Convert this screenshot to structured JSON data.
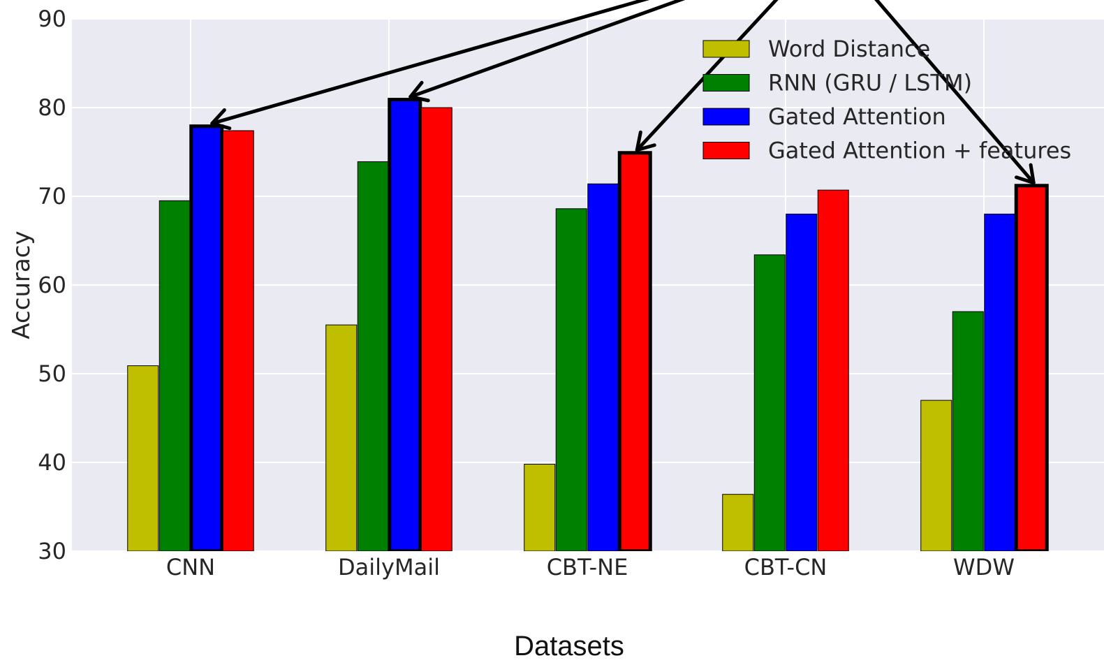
{
  "chart_data": {
    "type": "bar",
    "categories": [
      "CNN",
      "DailyMail",
      "CBT-NE",
      "CBT-CN",
      "WDW"
    ],
    "series": [
      {
        "name": "Word Distance",
        "color": "#bfbf00",
        "values": [
          50.9,
          55.5,
          39.8,
          36.4,
          47.0
        ]
      },
      {
        "name": "RNN (GRU / LSTM)",
        "color": "#008000",
        "values": [
          69.5,
          73.9,
          68.6,
          63.4,
          57.0
        ]
      },
      {
        "name": "Gated Attention",
        "color": "#0000ff",
        "values": [
          77.9,
          80.9,
          71.4,
          68.0,
          68.0
        ]
      },
      {
        "name": "Gated Attention + features",
        "color": "#ff0000",
        "values": [
          77.4,
          80.0,
          74.9,
          70.7,
          71.2
        ]
      }
    ],
    "highlighted": [
      {
        "category": "CNN",
        "series": "Gated Attention"
      },
      {
        "category": "DailyMail",
        "series": "Gated Attention"
      },
      {
        "category": "CBT-NE",
        "series": "Gated Attention + features"
      },
      {
        "category": "WDW",
        "series": "Gated Attention + features"
      }
    ],
    "yticks": [
      30,
      40,
      50,
      60,
      70,
      80,
      90
    ],
    "ylim": [
      30,
      90
    ],
    "xlabel": "Datasets",
    "ylabel": "Accuracy",
    "legend": "top-right",
    "grid": true,
    "background": "#eaeaf2"
  }
}
